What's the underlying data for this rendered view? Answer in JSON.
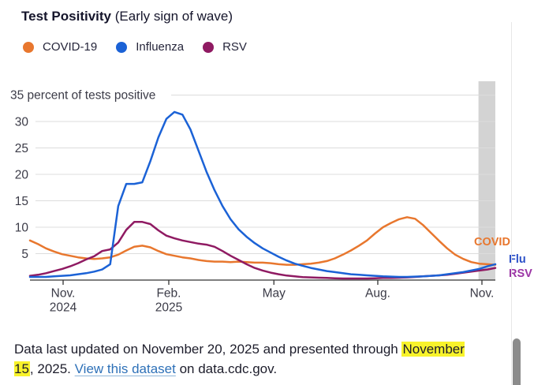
{
  "header": {
    "title": "Test Positivity",
    "subtitle": "(Early sign of wave)"
  },
  "legend": [
    {
      "label": "COVID-19",
      "color": "#E8772E"
    },
    {
      "label": "Influenza",
      "color": "#1B62D6"
    },
    {
      "label": "RSV",
      "color": "#8F1A62"
    }
  ],
  "chart_data": {
    "type": "line",
    "title": "Test Positivity (Early sign of wave)",
    "ylabel": "percent of tests positive",
    "y_axis": {
      "ticks": [
        5,
        10,
        15,
        20,
        25,
        30
      ],
      "top_tick": 35,
      "top_label": "35 percent of tests positive",
      "ylim": [
        0,
        35
      ],
      "grid": true
    },
    "x_axis": {
      "ticks": [
        {
          "line1": "Nov.",
          "line2": "2024",
          "week": 4.13
        },
        {
          "line1": "Feb.",
          "line2": "2025",
          "week": 17.3
        },
        {
          "line1": "May",
          "line2": "",
          "week": 30.4
        },
        {
          "line1": "Aug.",
          "line2": "",
          "week": 43.35
        },
        {
          "line1": "Nov.",
          "line2": "",
          "week": 56.33
        }
      ]
    },
    "highlight_band": {
      "start_week": 55.9,
      "end_week": 58.0,
      "color": "#D3D3D3"
    },
    "series": [
      {
        "name": "COVID-19",
        "color": "#E8772E",
        "values": [
          7.5,
          6.8,
          6.0,
          5.4,
          4.9,
          4.6,
          4.3,
          4.1,
          4.0,
          4.1,
          4.3,
          4.8,
          5.6,
          6.3,
          6.5,
          6.2,
          5.5,
          4.9,
          4.6,
          4.3,
          4.1,
          3.8,
          3.6,
          3.5,
          3.5,
          3.4,
          3.5,
          3.4,
          3.3,
          3.3,
          3.2,
          3.0,
          2.9,
          2.9,
          3.0,
          3.1,
          3.3,
          3.6,
          4.1,
          4.8,
          5.6,
          6.5,
          7.5,
          8.8,
          10.0,
          10.8,
          11.5,
          11.9,
          11.6,
          10.4,
          8.9,
          7.4,
          6.0,
          4.8,
          4.0,
          3.4,
          3.1,
          3.0,
          2.9
        ]
      },
      {
        "name": "RSV",
        "color": "#8F1A62",
        "values": [
          0.8,
          1.0,
          1.3,
          1.7,
          2.1,
          2.6,
          3.2,
          3.9,
          4.5,
          5.5,
          5.8,
          7.1,
          9.5,
          11.0,
          11.0,
          10.6,
          9.4,
          8.4,
          7.9,
          7.5,
          7.2,
          6.9,
          6.7,
          6.3,
          5.5,
          4.6,
          3.8,
          3.0,
          2.3,
          1.8,
          1.4,
          1.1,
          0.85,
          0.7,
          0.55,
          0.5,
          0.45,
          0.4,
          0.35,
          0.3,
          0.3,
          0.3,
          0.3,
          0.35,
          0.4,
          0.4,
          0.45,
          0.5,
          0.6,
          0.7,
          0.8,
          0.9,
          1.0,
          1.2,
          1.4,
          1.6,
          1.8,
          2.0,
          2.3
        ]
      },
      {
        "name": "Influenza",
        "color": "#1B62D6",
        "values": [
          0.6,
          0.6,
          0.6,
          0.7,
          0.8,
          0.9,
          1.1,
          1.3,
          1.6,
          2.0,
          3.0,
          14.0,
          18.2,
          18.2,
          18.5,
          22.5,
          27.0,
          30.5,
          31.8,
          31.3,
          28.5,
          24.5,
          20.5,
          17.0,
          14.0,
          11.5,
          9.6,
          8.2,
          7.0,
          6.0,
          5.2,
          4.4,
          3.7,
          3.1,
          2.7,
          2.3,
          2.0,
          1.7,
          1.5,
          1.3,
          1.1,
          1.0,
          0.9,
          0.8,
          0.7,
          0.65,
          0.6,
          0.6,
          0.65,
          0.7,
          0.8,
          0.9,
          1.1,
          1.3,
          1.5,
          1.8,
          2.1,
          2.6,
          3.0
        ]
      }
    ],
    "annotations": [
      {
        "text": "COVID",
        "color": "#E8772E",
        "x": 601,
        "y": 216
      },
      {
        "text": "Flu",
        "color": "#2B50C8",
        "x": 645,
        "y": 238
      },
      {
        "text": "RSV",
        "color": "#9B35A5",
        "x": 645,
        "y": 256
      }
    ],
    "legend_position": "top"
  },
  "footer": {
    "line1": "Data last updated on November 20, 2025 and presented through",
    "highlight": "November 15",
    "after_highlight": ", 2025. ",
    "link": "View this dataset",
    "suffix": " on data.cdc.gov."
  }
}
